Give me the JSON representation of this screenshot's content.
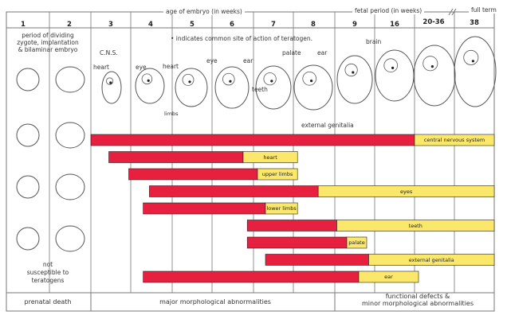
{
  "header": {
    "embryo_period": "age of embryo (in weeks)",
    "fetal_period": "fetal period (in weeks)",
    "full_term": "full term"
  },
  "weeks": [
    "1",
    "2",
    "3",
    "4",
    "5",
    "6",
    "7",
    "8",
    "9",
    "16",
    "20-36",
    "38"
  ],
  "notes": {
    "period_dividing": "period of dividing",
    "zygote": "zygote, implantation",
    "bilaminar": "& bilaminar embryo",
    "legend": "• indicates common site of action of teratogen.",
    "not_susceptible_1": "not",
    "not_susceptible_2": "susceptible to",
    "not_susceptible_3": "teratogens"
  },
  "embryo_labels": {
    "cns": "C.N.S.",
    "heart_3": "heart",
    "eye_4": "eye",
    "heart_4": "heart",
    "limbs": "limbs",
    "eye_5": "eye",
    "ear_6": "ear",
    "teeth": "teeth",
    "palate": "palate",
    "ear_7": "ear",
    "brain": "brain",
    "external_genitalia": "external genitalia"
  },
  "colors": {
    "critical": "#e8203f",
    "less_sensitive": "#fbe86a",
    "grid": "#777777"
  },
  "bars": [
    {
      "label": "central nervous system",
      "red": [
        2,
        10
      ],
      "yellow": [
        10,
        12
      ]
    },
    {
      "label": "heart",
      "red": [
        2.45,
        5.75
      ],
      "yellow": [
        5.75,
        7.1
      ]
    },
    {
      "label": "upper limbs",
      "red": [
        2.95,
        6.1
      ],
      "yellow": [
        6.1,
        7.1
      ]
    },
    {
      "label": "eyes",
      "red": [
        3.45,
        7.6
      ],
      "yellow": [
        7.6,
        12
      ]
    },
    {
      "label": "lower limbs",
      "red": [
        3.3,
        6.3
      ],
      "yellow": [
        6.3,
        7.1
      ]
    },
    {
      "label": "teeth",
      "red": [
        5.85,
        8.05
      ],
      "yellow": [
        8.05,
        12
      ]
    },
    {
      "label": "palate",
      "red": [
        5.85,
        8.3
      ],
      "yellow": [
        8.3,
        8.8
      ]
    },
    {
      "label": "external genitalia",
      "red": [
        6.3,
        8.85
      ],
      "yellow": [
        8.85,
        12
      ]
    },
    {
      "label": "ear",
      "red": [
        3.3,
        8.6
      ],
      "yellow": [
        8.6,
        10.1
      ]
    }
  ],
  "footer": {
    "prenatal_death": "prenatal death",
    "major": "major morphological abnormalities",
    "functional_1": "functional defects &",
    "functional_2": "minor morphological abnormalities"
  }
}
